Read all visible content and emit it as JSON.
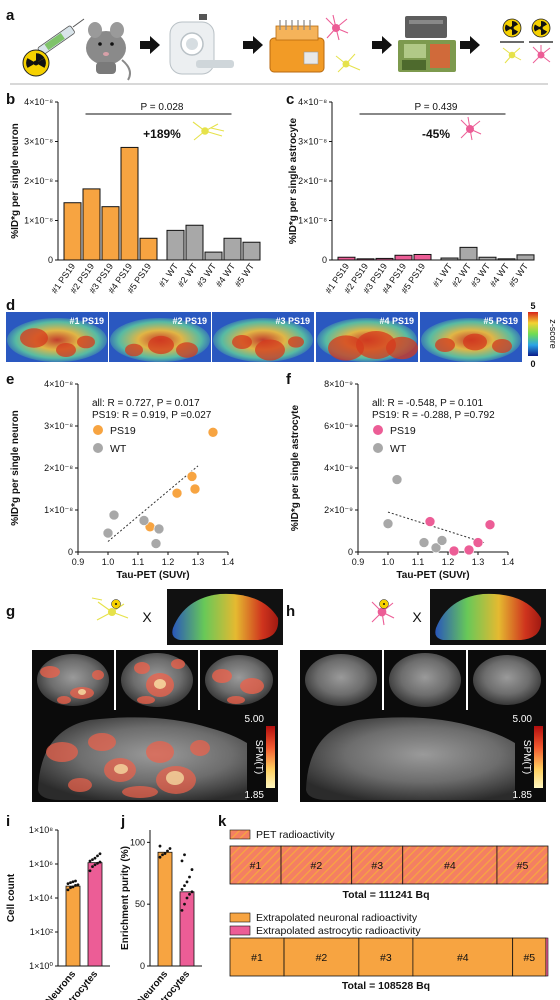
{
  "panel_letters": {
    "a": "a",
    "b": "b",
    "c": "c",
    "d": "d",
    "e": "e",
    "f": "f",
    "g": "g",
    "h": "h",
    "i": "i",
    "j": "j",
    "k": "k"
  },
  "icons": [
    "syringe-icon",
    "radioactive-icon",
    "mouse-icon",
    "pet-scanner-icon",
    "sorting-device-icon",
    "neuron-icon",
    "astrocyte-icon",
    "gamma-counter-icon",
    "brain-section-icon"
  ],
  "colors": {
    "ps19": "#f7a441",
    "wt": "#a8a8a8",
    "astro": "#ec5d96",
    "neuron_icon": "#e6e24a"
  },
  "d": {
    "labels": [
      "#1 PS19",
      "#2 PS19",
      "#3 PS19",
      "#4 PS19",
      "#5 PS19"
    ],
    "colorbar": {
      "title": "z-score",
      "max_label": "5",
      "min_label": "0"
    }
  },
  "g": {
    "times": "X",
    "cbar_max": "5.00",
    "cbar_min": "1.85",
    "cbar_title": "SPM(T)"
  },
  "h": {
    "times": "X",
    "cbar_max": "5.00",
    "cbar_min": "1.85",
    "cbar_title": "SPM(T)"
  },
  "k": {
    "legend1": "PET radioactivity",
    "legend2": "Extrapolated neuronal radioactivity",
    "legend3": "Extrapolated astrocytic radioactivity",
    "bar1_segments": [
      "#1",
      "#2",
      "#3",
      "#4",
      "#5"
    ],
    "bar1_values": [
      13,
      18,
      13,
      24,
      13
    ],
    "bar1_total": "Total = 111241 Bq",
    "bar2_segments": [
      "#1",
      "#2",
      "#3",
      "#4",
      "#5"
    ],
    "bar2_values": [
      13,
      18,
      13,
      24,
      8
    ],
    "bar2_astro": [
      0,
      0,
      0,
      0,
      0.5
    ],
    "bar2_total": "Total = 108528 Bq"
  },
  "chart_data": [
    {
      "panel": "b",
      "type": "bar",
      "categories": [
        "#1 PS19",
        "#2 PS19",
        "#3 PS19",
        "#4 PS19",
        "#5 PS19",
        "#1 WT",
        "#2 WT",
        "#3 WT",
        "#4 WT",
        "#5 WT"
      ],
      "values": [
        1.45,
        1.8,
        1.35,
        2.85,
        0.55,
        0.75,
        0.88,
        0.2,
        0.55,
        0.45
      ],
      "ylabel": "%ID*g per single neuron",
      "ylim": [
        0,
        4
      ],
      "yticks": [
        "0",
        "1×10⁻⁸",
        "2×10⁻⁸",
        "3×10⁻⁸",
        "4×10⁻⁸"
      ],
      "p_text": "P = 0.028",
      "change": "+189%"
    },
    {
      "panel": "c",
      "type": "bar",
      "categories": [
        "#1 PS19",
        "#2 PS19",
        "#3 PS19",
        "#4 PS19",
        "#5 PS19",
        "#1 WT",
        "#2 WT",
        "#3 WT",
        "#4 WT",
        "#5 WT"
      ],
      "values": [
        0.07,
        0.03,
        0.04,
        0.12,
        0.14,
        0.05,
        0.32,
        0.07,
        0.03,
        0.13
      ],
      "ylabel": "%ID*g per single astrocyte",
      "ylim": [
        0,
        4
      ],
      "yticks": [
        "0",
        "1×10⁻⁸",
        "2×10⁻⁸",
        "3×10⁻⁸",
        "4×10⁻⁸"
      ],
      "p_text": "P = 0.439",
      "change": "-45%"
    },
    {
      "panel": "e",
      "type": "scatter",
      "xlabel": "Tau-PET (SUVr)",
      "ylabel": "%ID*g per single neuron",
      "xlim": [
        0.9,
        1.4
      ],
      "ylim": [
        0,
        4
      ],
      "xticks": [
        "0.9",
        "1.0",
        "1.1",
        "1.2",
        "1.3",
        "1.4"
      ],
      "yticks": [
        "0",
        "1×10⁻⁸",
        "2×10⁻⁸",
        "3×10⁻⁸",
        "4×10⁻⁸"
      ],
      "stats_all": "all: R = 0.727, P = 0.017",
      "stats_ps19": "PS19: R = 0.919, P =0.027",
      "series": [
        {
          "name": "PS19",
          "points": [
            [
              1.23,
              1.4
            ],
            [
              1.28,
              1.8
            ],
            [
              1.29,
              1.5
            ],
            [
              1.35,
              2.85
            ],
            [
              1.14,
              0.6
            ]
          ]
        },
        {
          "name": "WT",
          "points": [
            [
              1.0,
              0.45
            ],
            [
              1.02,
              0.88
            ],
            [
              1.12,
              0.75
            ],
            [
              1.17,
              0.55
            ],
            [
              1.16,
              0.2
            ]
          ]
        }
      ],
      "trend": [
        [
          1.0,
          0.25
        ],
        [
          1.3,
          2.05
        ]
      ]
    },
    {
      "panel": "f",
      "type": "scatter",
      "xlabel": "Tau-PET (SUVr)",
      "ylabel": "%ID*g per single astrocyte",
      "xlim": [
        0.9,
        1.4
      ],
      "ylim": [
        0,
        8
      ],
      "xticks": [
        "0.9",
        "1.0",
        "1.1",
        "1.2",
        "1.3",
        "1.4"
      ],
      "yticks": [
        "0",
        "2×10⁻⁹",
        "4×10⁻⁹",
        "6×10⁻⁹",
        "8×10⁻⁹"
      ],
      "stats_all": "all: R = -0.548, P = 0.101",
      "stats_ps19": "PS19: R = -0.288, P =0.792",
      "series": [
        {
          "name": "PS19",
          "points": [
            [
              1.14,
              1.45
            ],
            [
              1.22,
              0.05
            ],
            [
              1.27,
              0.1
            ],
            [
              1.3,
              0.45
            ],
            [
              1.34,
              1.3
            ]
          ]
        },
        {
          "name": "WT",
          "points": [
            [
              1.0,
              1.35
            ],
            [
              1.03,
              3.45
            ],
            [
              1.12,
              0.45
            ],
            [
              1.16,
              0.2
            ],
            [
              1.18,
              0.55
            ]
          ]
        }
      ],
      "trend": [
        [
          1.0,
          1.9
        ],
        [
          1.32,
          0.45
        ]
      ]
    },
    {
      "panel": "i",
      "type": "bar",
      "categories": [
        "Neurons",
        "Astrocytes"
      ],
      "values": [
        50000,
        1200000
      ],
      "points": [
        [
          30000,
          40000,
          45000,
          55000,
          60000,
          70000,
          80000,
          90000,
          100000
        ],
        [
          400000,
          700000,
          900000,
          1100000,
          1300000,
          1500000,
          1800000,
          2200000,
          3000000,
          4000000
        ]
      ],
      "ylabel": "Cell count",
      "yscale": "log",
      "yticks": [
        "1×10⁰",
        "1×10²",
        "1×10⁴",
        "1×10⁶",
        "1×10⁸"
      ]
    },
    {
      "panel": "j",
      "type": "bar",
      "categories": [
        "Neurons",
        "Astrocytes"
      ],
      "values": [
        92,
        60
      ],
      "points": [
        [
          88,
          90,
          91,
          93,
          95,
          97
        ],
        [
          45,
          50,
          55,
          58,
          60,
          62,
          65,
          68,
          72,
          78,
          85,
          90
        ]
      ],
      "ylabel": "Enrichment purity (%)",
      "ylim": [
        0,
        110
      ],
      "yticks": [
        "0",
        "50",
        "100"
      ]
    }
  ]
}
